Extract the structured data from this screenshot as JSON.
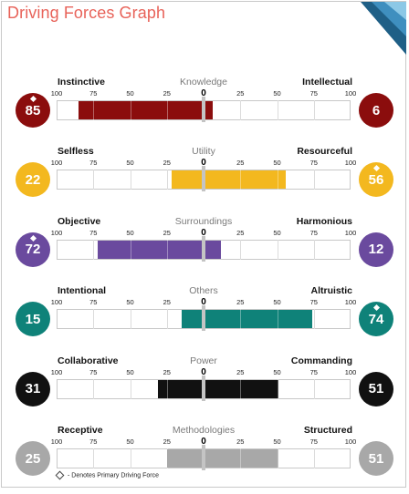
{
  "title": "Driving Forces Graph",
  "footnote": "- Denotes Primary Driving Force",
  "chart_data": {
    "type": "bar",
    "scale_ticks": [
      "100",
      "75",
      "50",
      "25",
      "0",
      "25",
      "50",
      "75",
      "100"
    ],
    "xlim": [
      -100,
      100
    ],
    "rows": [
      {
        "category": "Knowledge",
        "left_label": "Instinctive",
        "right_label": "Intellectual",
        "left_value": 85,
        "right_value": 6,
        "primary": "left",
        "color": "#8b0d0d"
      },
      {
        "category": "Utility",
        "left_label": "Selfless",
        "right_label": "Resourceful",
        "left_value": 22,
        "right_value": 56,
        "primary": "right",
        "color": "#f3b81f"
      },
      {
        "category": "Surroundings",
        "left_label": "Objective",
        "right_label": "Harmonious",
        "left_value": 72,
        "right_value": 12,
        "primary": "left",
        "color": "#6a4a9e"
      },
      {
        "category": "Others",
        "left_label": "Intentional",
        "right_label": "Altruistic",
        "left_value": 15,
        "right_value": 74,
        "primary": "right",
        "color": "#0f8279"
      },
      {
        "category": "Power",
        "left_label": "Collaborative",
        "right_label": "Commanding",
        "left_value": 31,
        "right_value": 51,
        "primary": "none",
        "color": "#111111"
      },
      {
        "category": "Methodologies",
        "left_label": "Receptive",
        "right_label": "Structured",
        "left_value": 25,
        "right_value": 51,
        "primary": "none",
        "color": "#a8a8a8"
      }
    ]
  }
}
